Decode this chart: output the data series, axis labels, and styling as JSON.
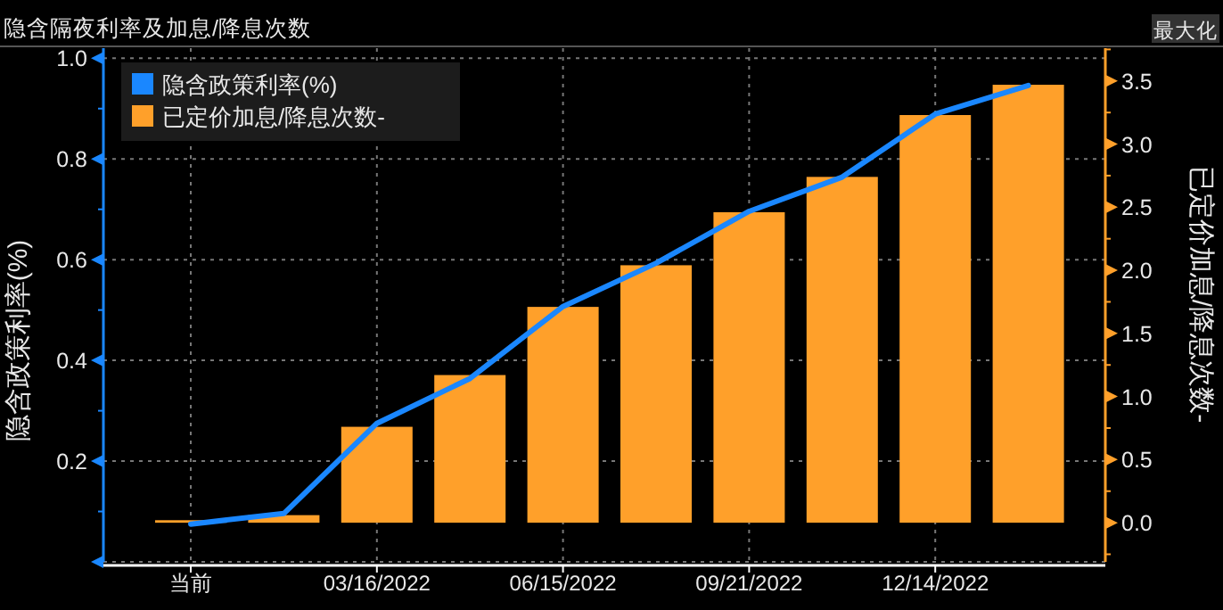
{
  "chart_data": {
    "type": "bar",
    "title": "隐含隔夜利率及加息/降息次数",
    "annotations": [
      "最大化"
    ],
    "ylabel": "隐含政策利率(%)",
    "y2label": "已定价加息/降息次数-",
    "categories": [
      "当前",
      null,
      "03/16/2022",
      null,
      "06/15/2022",
      null,
      "09/21/2022",
      null,
      "12/14/2022",
      null
    ],
    "series": [
      {
        "name": "隐含政策利率(%)",
        "type": "line",
        "color": "#1a87ff",
        "values": [
          0.075,
          0.096,
          0.275,
          0.364,
          0.507,
          0.593,
          0.696,
          0.764,
          0.889,
          0.946
        ]
      },
      {
        "name": "已定价加息/降息次数-",
        "axis": "y2",
        "color": "#ffa02a",
        "values": [
          0.02,
          0.06,
          0.76,
          1.17,
          1.71,
          2.04,
          2.46,
          2.74,
          3.23,
          3.47
        ]
      }
    ],
    "ylim": [
      0,
      1.02
    ],
    "yticks": [
      {
        "value": 0,
        "label": null
      },
      {
        "value": 0.2,
        "label": "0.2"
      },
      {
        "value": 0.4,
        "label": "0.4"
      },
      {
        "value": 0.6,
        "label": "0.6"
      },
      {
        "value": 0.8,
        "label": "0.8"
      },
      {
        "value": 1,
        "label": "1.0"
      }
    ],
    "y2lim": [
      -0.31,
      3.76
    ],
    "y2ticks": [
      {
        "value": 0,
        "label": "0.0"
      },
      {
        "value": 0.5,
        "label": "0.5"
      },
      {
        "value": 1,
        "label": "1.0"
      },
      {
        "value": 1.5,
        "label": "1.5"
      },
      {
        "value": 2,
        "label": "2.0"
      },
      {
        "value": 2.5,
        "label": "2.5"
      },
      {
        "value": 3,
        "label": "3.0"
      },
      {
        "value": 3.5,
        "label": "3.5"
      }
    ],
    "grid": true,
    "legend": "top left"
  }
}
